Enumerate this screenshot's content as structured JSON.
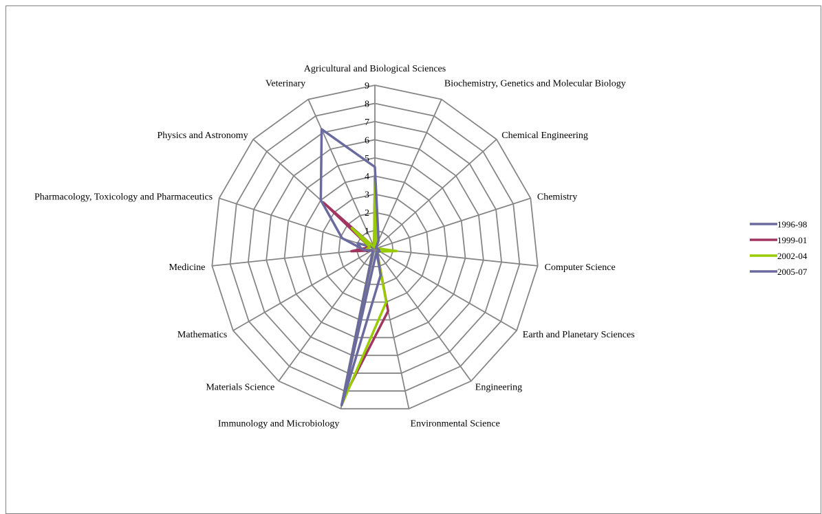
{
  "chart_data": {
    "type": "radar",
    "categories": [
      "Agricultural and Biological Sciences",
      "Biochemistry, Genetics and Molecular Biology",
      "Chemical Engineering",
      "Chemistry",
      "Computer Science",
      "Earth and Planetary Sciences",
      "Engineering",
      "Environmental Science",
      "Immunology and Microbiology",
      "Materials Science",
      "Mathematics",
      "Medicine",
      "Pharmacology, Toxicology and Pharmaceutics",
      "Physics and Astronomy",
      "Veterinary"
    ],
    "rlim": [
      0,
      9
    ],
    "ticks": [
      "0",
      "1",
      "2",
      "3",
      "4",
      "5",
      "6",
      "7",
      "8",
      "9"
    ],
    "grid": true,
    "legend_position": "right",
    "series": [
      {
        "name": "1996-98",
        "color": "#6a6a9e",
        "values": [
          4.0,
          0.2,
          0.1,
          0.1,
          0.2,
          0.3,
          0.2,
          0.3,
          8.8,
          0.2,
          0.2,
          0.7,
          1.0,
          0.1,
          0.1
        ]
      },
      {
        "name": "1999-01",
        "color": "#a03560",
        "values": [
          4.0,
          0.2,
          0.1,
          0.1,
          0.2,
          0.3,
          0.2,
          3.5,
          8.5,
          0.2,
          0.2,
          1.3,
          0.3,
          3.8,
          0.1
        ]
      },
      {
        "name": "2002-04",
        "color": "#99cc00",
        "values": [
          4.0,
          0.2,
          0.1,
          0.1,
          1.2,
          0.3,
          0.2,
          3.0,
          8.8,
          0.2,
          0.2,
          0.5,
          0.3,
          1.7,
          0.1
        ]
      },
      {
        "name": "2005-07",
        "color": "#6a6a9e",
        "values": [
          4.5,
          0.5,
          0.1,
          0.1,
          0.2,
          0.3,
          0.2,
          1.5,
          8.8,
          0.2,
          0.2,
          0.6,
          1.9,
          4.0,
          7.2
        ]
      }
    ]
  }
}
